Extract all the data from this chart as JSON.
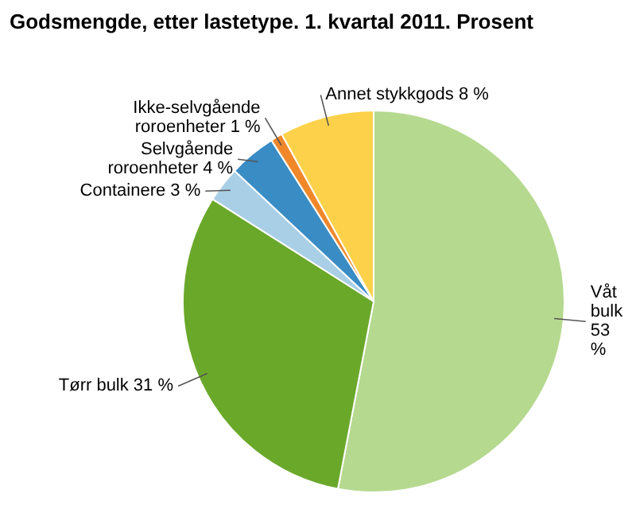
{
  "chart_data": {
    "type": "pie",
    "title": "Godsmengde, etter lastetype. 1. kvartal 2011. Prosent",
    "categories": [
      "Våt bulk",
      "Tørr bulk",
      "Containere",
      "Selvgående roroenheter",
      "Ikke-selvgående roroenheter",
      "Annet stykkgods"
    ],
    "values": [
      53,
      31,
      3,
      4,
      1,
      8
    ],
    "colors": [
      "#b5d98f",
      "#6aa82a",
      "#a8cfe6",
      "#3a8cc4",
      "#f0882a",
      "#fdd24a"
    ],
    "value_labels": [
      "53 %",
      "31 %",
      "3 %",
      "4 %",
      "1 %",
      "8 %"
    ]
  }
}
